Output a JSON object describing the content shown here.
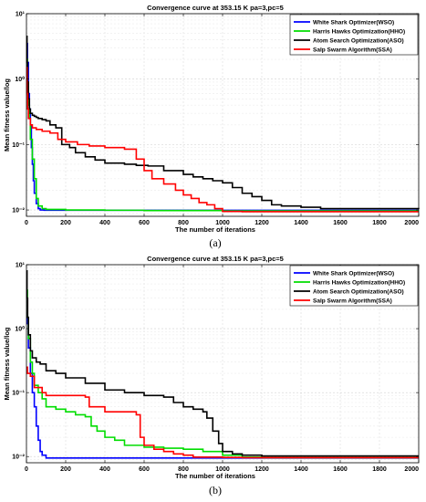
{
  "chart_data": [
    {
      "type": "line",
      "panel_label": "(a)",
      "title": "Convergence curve at 353.15 K pa=3,pc=5",
      "xlabel": "The number of iterations",
      "ylabel": "Mean fitness value/log",
      "yscale": "log",
      "grid": true,
      "legend_position": "top-right",
      "xlim": [
        0,
        2000
      ],
      "ylim": [
        0.008,
        10
      ],
      "xticks": [
        0,
        200,
        400,
        600,
        800,
        1000,
        1200,
        1400,
        1600,
        1800,
        2000
      ],
      "xtick_labels": [
        "0",
        "200",
        "400",
        "600",
        "800",
        "1000",
        "1200",
        "1400",
        "1600",
        "1800",
        "2000"
      ],
      "yticks": [
        0.01,
        0.1,
        1,
        10
      ],
      "ytick_labels": [
        "10⁻²",
        "10⁻¹",
        "10⁰",
        "10¹"
      ],
      "series": [
        {
          "name": "White Shark Optimizer(WSO)",
          "color": "#0000ff",
          "x": [
            0,
            5,
            10,
            15,
            20,
            25,
            30,
            35,
            40,
            50,
            60,
            70,
            90,
            2000
          ],
          "y": [
            3.5,
            1.8,
            0.6,
            0.35,
            0.2,
            0.09,
            0.05,
            0.028,
            0.018,
            0.0125,
            0.0105,
            0.01,
            0.0099,
            0.0099
          ]
        },
        {
          "name": "Harris Hawks Optimization(HHO)",
          "color": "#00dd00",
          "x": [
            0,
            5,
            10,
            15,
            20,
            30,
            40,
            50,
            60,
            80,
            100,
            200,
            400,
            600,
            800,
            1000,
            1200,
            2000
          ],
          "y": [
            2.0,
            0.7,
            0.4,
            0.25,
            0.12,
            0.06,
            0.03,
            0.015,
            0.0115,
            0.0105,
            0.0102,
            0.01,
            0.0099,
            0.0098,
            0.0098,
            0.0097,
            0.0097,
            0.0097
          ]
        },
        {
          "name": "Atom Search Optimization(ASO)",
          "color": "#000000",
          "x": [
            0,
            3,
            6,
            10,
            15,
            20,
            30,
            40,
            50,
            60,
            80,
            100,
            120,
            150,
            180,
            220,
            250,
            300,
            350,
            400,
            500,
            560,
            620,
            700,
            800,
            850,
            900,
            950,
            1000,
            1050,
            1100,
            1150,
            1200,
            1250,
            1300,
            1400,
            1500,
            2000
          ],
          "y": [
            4.5,
            1.8,
            0.9,
            0.5,
            0.35,
            0.3,
            0.28,
            0.27,
            0.26,
            0.25,
            0.24,
            0.23,
            0.2,
            0.18,
            0.1,
            0.09,
            0.075,
            0.065,
            0.058,
            0.052,
            0.05,
            0.048,
            0.047,
            0.04,
            0.035,
            0.032,
            0.03,
            0.028,
            0.026,
            0.022,
            0.018,
            0.016,
            0.014,
            0.012,
            0.0115,
            0.011,
            0.0105,
            0.0104
          ]
        },
        {
          "name": "Salp Swarm Algorithm(SSA)",
          "color": "#ff0000",
          "x": [
            0,
            3,
            6,
            10,
            20,
            30,
            50,
            80,
            120,
            160,
            200,
            260,
            320,
            400,
            500,
            560,
            600,
            640,
            700,
            760,
            800,
            840,
            880,
            920,
            960,
            1000,
            1100,
            2000
          ],
          "y": [
            1.5,
            0.6,
            0.35,
            0.25,
            0.2,
            0.18,
            0.17,
            0.16,
            0.15,
            0.12,
            0.11,
            0.1,
            0.095,
            0.09,
            0.085,
            0.06,
            0.04,
            0.03,
            0.025,
            0.02,
            0.017,
            0.015,
            0.013,
            0.012,
            0.0105,
            0.0095,
            0.0094,
            0.0094
          ]
        }
      ]
    },
    {
      "type": "line",
      "panel_label": "(b)",
      "title": "Convergence curve at 353.15 K pa=3,pc=5",
      "xlabel": "The number of iterations",
      "ylabel": "Mean fitness value/log",
      "yscale": "log",
      "grid": true,
      "legend_position": "top-right",
      "xlim": [
        0,
        2000
      ],
      "ylim": [
        0.008,
        10
      ],
      "xticks": [
        0,
        200,
        400,
        600,
        800,
        1000,
        1200,
        1400,
        1600,
        1800,
        2000
      ],
      "xtick_labels": [
        "0",
        "200",
        "400",
        "600",
        "800",
        "1000",
        "1200",
        "1400",
        "1600",
        "1800",
        "2000"
      ],
      "yticks": [
        0.01,
        0.1,
        1,
        10
      ],
      "ytick_labels": [
        "10⁻²",
        "10⁻¹",
        "10⁰",
        "10¹"
      ],
      "series": [
        {
          "name": "White Shark Optimizer(WSO)",
          "color": "#0000ff",
          "x": [
            0,
            5,
            10,
            20,
            30,
            40,
            50,
            60,
            70,
            80,
            100,
            2000
          ],
          "y": [
            3.0,
            1.2,
            0.5,
            0.2,
            0.1,
            0.06,
            0.03,
            0.018,
            0.012,
            0.0105,
            0.0095,
            0.0095
          ]
        },
        {
          "name": "Harris Hawks Optimization(HHO)",
          "color": "#00dd00",
          "x": [
            0,
            5,
            10,
            20,
            30,
            40,
            60,
            80,
            100,
            150,
            200,
            250,
            300,
            330,
            360,
            400,
            450,
            500,
            600,
            700,
            800,
            900,
            1000,
            1100,
            1200,
            2000
          ],
          "y": [
            4.0,
            1.5,
            0.7,
            0.3,
            0.2,
            0.13,
            0.1,
            0.08,
            0.06,
            0.055,
            0.05,
            0.045,
            0.042,
            0.03,
            0.025,
            0.02,
            0.018,
            0.015,
            0.014,
            0.0135,
            0.013,
            0.012,
            0.0105,
            0.0098,
            0.0096,
            0.0096
          ]
        },
        {
          "name": "Atom Search Optimization(ASO)",
          "color": "#000000",
          "x": [
            0,
            3,
            6,
            10,
            20,
            30,
            50,
            70,
            100,
            150,
            200,
            300,
            400,
            500,
            600,
            700,
            750,
            800,
            850,
            900,
            920,
            950,
            980,
            1000,
            1050,
            1100,
            1200,
            2000
          ],
          "y": [
            8.0,
            3.0,
            1.5,
            0.8,
            0.45,
            0.35,
            0.3,
            0.28,
            0.22,
            0.2,
            0.17,
            0.14,
            0.11,
            0.1,
            0.09,
            0.085,
            0.07,
            0.06,
            0.055,
            0.05,
            0.04,
            0.025,
            0.016,
            0.012,
            0.011,
            0.0105,
            0.0102,
            0.0102
          ]
        },
        {
          "name": "Salp Swarm Algorithm(SSA)",
          "color": "#ff0000",
          "x": [
            0,
            5,
            10,
            20,
            40,
            80,
            100,
            200,
            300,
            320,
            400,
            560,
            580,
            600,
            650,
            700,
            750,
            800,
            850,
            1000,
            1100,
            2000
          ],
          "y": [
            0.25,
            0.2,
            0.2,
            0.18,
            0.12,
            0.1,
            0.09,
            0.09,
            0.085,
            0.06,
            0.05,
            0.045,
            0.02,
            0.015,
            0.013,
            0.012,
            0.011,
            0.0105,
            0.0098,
            0.0097,
            0.0096,
            0.0096
          ]
        }
      ]
    }
  ]
}
